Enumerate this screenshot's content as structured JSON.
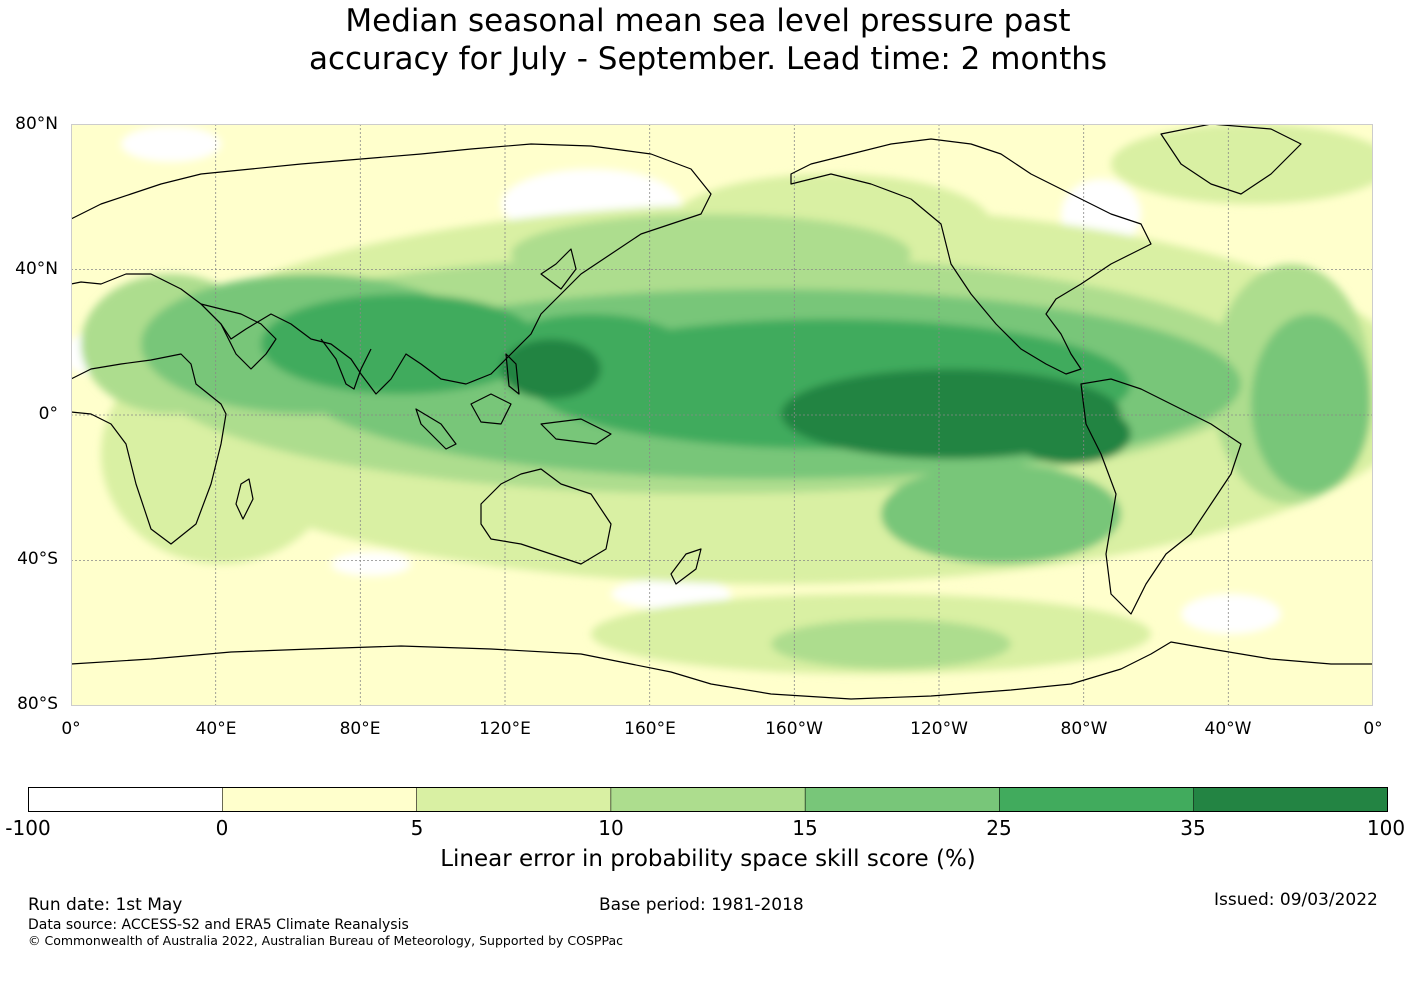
{
  "title": {
    "line1": "Median seasonal mean sea level pressure past",
    "line2": "accuracy for July - September. Lead time: 2 months"
  },
  "map": {
    "type": "global skill score map",
    "lat_labels": [
      "80°N",
      "40°N",
      "0°",
      "40°S",
      "80°S"
    ],
    "lon_labels": [
      "0°",
      "40°E",
      "80°E",
      "120°E",
      "160°E",
      "160°W",
      "120°W",
      "80°W",
      "40°W",
      "0°"
    ],
    "lon_range": [
      0,
      360
    ],
    "lat_range": [
      -80,
      80
    ],
    "grid": true
  },
  "colorbar": {
    "bounds": [
      "-100",
      "0",
      "5",
      "10",
      "15",
      "25",
      "35",
      "100"
    ],
    "colors": [
      "#ffffff",
      "#ffffcc",
      "#d9f0a3",
      "#addd8e",
      "#78c679",
      "#41ab5d",
      "#238443"
    ],
    "label": "Linear error in probability space skill score (%)"
  },
  "footer": {
    "run_date": "Run date: 1st May",
    "base_period": "Base period: 1981-2018",
    "issued": "Issued: 09/03/2022",
    "data_source": "Data source: ACCESS-S2 and ERA5 Climate Reanalysis",
    "copyright": "© Commonwealth of Australia 2022, Australian Bureau of Meteorology, Supported by COSPPac"
  }
}
